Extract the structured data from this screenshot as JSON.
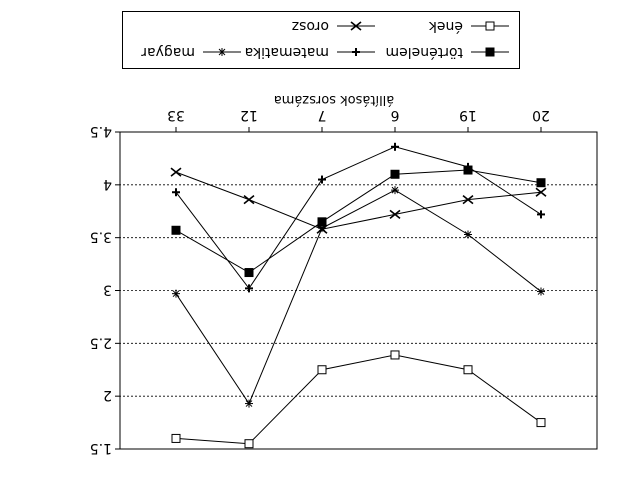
{
  "chart_data": {
    "type": "line",
    "title": "",
    "xlabel": "állítások sorszáma",
    "ylabel": "",
    "categories": [
      "20",
      "19",
      "6",
      "7",
      "12",
      "33"
    ],
    "y_ticks": [
      "1.5",
      "2",
      "2.5",
      "3",
      "3.5",
      "4",
      "4.5"
    ],
    "ylim": [
      1.5,
      4.5
    ],
    "y_inverted": true,
    "rotation_deg": 180,
    "grid": "horizontal-dotted",
    "legend_position": "bottom-center",
    "series": [
      {
        "name": "ének",
        "marker": "open-square",
        "values": [
          1.75,
          2.25,
          2.39,
          2.25,
          1.55,
          1.6
        ]
      },
      {
        "name": "orosz",
        "marker": "x",
        "values": [
          3.93,
          3.86,
          3.72,
          3.58,
          3.86,
          4.12
        ]
      },
      {
        "name": "történelem",
        "marker": "filled-square",
        "values": [
          4.02,
          4.14,
          4.1,
          3.65,
          3.17,
          3.57
        ]
      },
      {
        "name": "matematika",
        "marker": "plus",
        "values": [
          3.72,
          4.17,
          4.36,
          4.05,
          3.02,
          3.93
        ]
      },
      {
        "name": "magyar",
        "marker": "asterisk",
        "values": [
          2.99,
          3.53,
          3.95,
          3.59,
          1.93,
          2.97
        ]
      }
    ]
  }
}
